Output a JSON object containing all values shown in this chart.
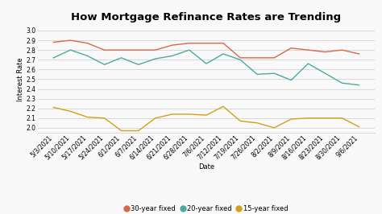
{
  "title": "How Mortgage Refinance Rates are Trending",
  "xlabel": "Date",
  "ylabel": "Interest Rate",
  "ylim": [
    1.95,
    3.05
  ],
  "yticks": [
    2.0,
    2.1,
    2.2,
    2.3,
    2.4,
    2.5,
    2.6,
    2.7,
    2.8,
    2.9,
    3.0
  ],
  "dates": [
    "5/3/2021",
    "5/10/2021",
    "5/17/2021",
    "5/24/2021",
    "6/1/2021",
    "6/7/2021",
    "6/14/2021",
    "6/21/2021",
    "6/28/2021",
    "7/6/2021",
    "7/12/2021",
    "7/19/2021",
    "7/26/2021",
    "8/2/2021",
    "8/9/2021",
    "8/16/2021",
    "8/23/2021",
    "8/30/2021",
    "9/6/2021"
  ],
  "series_30yr": [
    2.88,
    2.9,
    2.87,
    2.8,
    2.8,
    2.8,
    2.8,
    2.85,
    2.87,
    2.87,
    2.87,
    2.72,
    2.72,
    2.72,
    2.82,
    2.8,
    2.78,
    2.8,
    2.76
  ],
  "series_20yr": [
    2.72,
    2.8,
    2.74,
    2.65,
    2.72,
    2.65,
    2.71,
    2.74,
    2.8,
    2.66,
    2.76,
    2.7,
    2.55,
    2.56,
    2.49,
    2.66,
    2.56,
    2.46,
    2.44
  ],
  "series_15yr": [
    2.21,
    2.17,
    2.11,
    2.1,
    1.97,
    1.97,
    2.1,
    2.14,
    2.14,
    2.13,
    2.22,
    2.07,
    2.05,
    2.0,
    2.09,
    2.1,
    2.1,
    2.1,
    2.01
  ],
  "color_30yr": "#d9674a",
  "color_20yr": "#4aab9e",
  "color_15yr": "#d4a017",
  "legend_labels": [
    "30-year fixed",
    "20-year fixed",
    "15-year fixed"
  ],
  "background_color": "#f9f9f9",
  "grid_color": "#cccccc",
  "title_fontsize": 9.5,
  "axis_label_fontsize": 6,
  "tick_fontsize": 5.5,
  "legend_fontsize": 6
}
